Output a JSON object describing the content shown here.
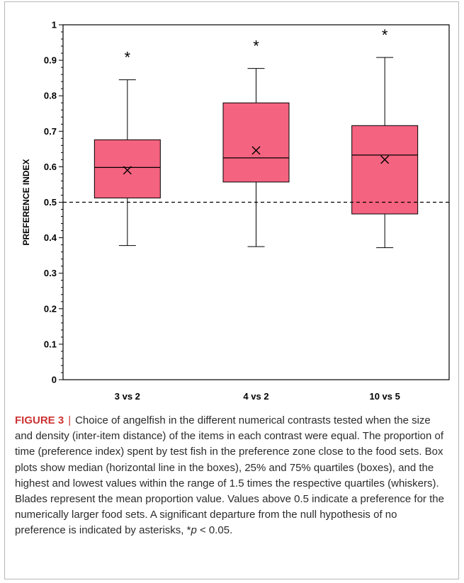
{
  "chart_data": {
    "type": "box",
    "ylabel": "PREFERENCE INDEX",
    "ylim": [
      0,
      1
    ],
    "yticks": [
      "0",
      "0.1",
      "0.2",
      "0.3",
      "0.4",
      "0.5",
      "0.6",
      "0.7",
      "0.8",
      "0.9",
      "1"
    ],
    "categories": [
      "3 vs 2",
      "4 vs 2",
      "10 vs 5"
    ],
    "boxes": [
      {
        "category": "3 vs 2",
        "min": 0.378,
        "q1": 0.512,
        "median": 0.598,
        "q3": 0.676,
        "max": 0.845,
        "mean": 0.59,
        "significance": "*"
      },
      {
        "category": "4 vs 2",
        "min": 0.375,
        "q1": 0.557,
        "median": 0.625,
        "q3": 0.78,
        "max": 0.877,
        "mean": 0.646,
        "significance": "*"
      },
      {
        "category": "10 vs 5",
        "min": 0.372,
        "q1": 0.467,
        "median": 0.633,
        "q3": 0.716,
        "max": 0.908,
        "mean": 0.62,
        "significance": "*"
      }
    ],
    "reference_line": 0.5,
    "box_color": "#f4637f",
    "grid": false
  },
  "caption": {
    "label": "FIGURE 3",
    "separator": "|",
    "text": "Choice of angelfish in the different numerical contrasts tested when the size and density (inter-item distance) of the items in each contrast were equal. The proportion of time (preference index) spent by test fish in the preference zone close to the food sets. Box plots show median (horizontal line in the boxes), 25% and 75% quartiles (boxes), and the highest and lowest values within the range of 1.5 times the respective quartiles (whiskers). Blades represent the mean proportion value. Values above 0.5 indicate a preference for the numerically larger food sets. A significant departure from the null hypothesis of no preference is indicated by asterisks, *",
    "p_symbol": "p",
    "p_rest": " < 0.05."
  }
}
